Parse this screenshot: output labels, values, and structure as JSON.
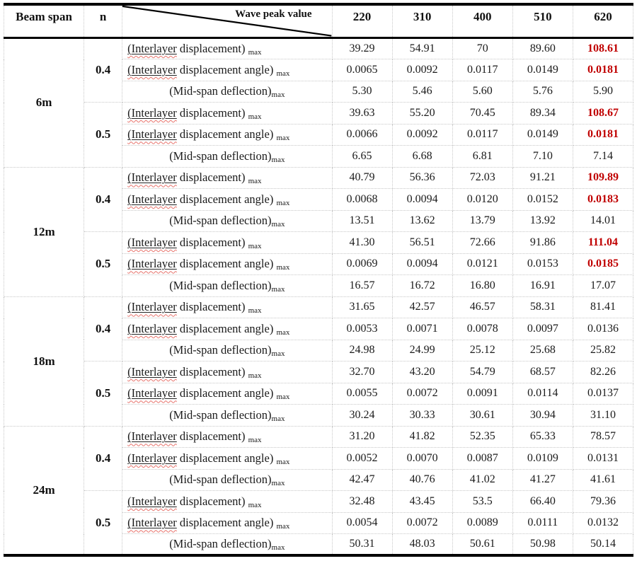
{
  "header": {
    "beam_span": "Beam span",
    "n": "n",
    "diagonal_label": "Wave peak value",
    "wave_columns": [
      "220",
      "310",
      "400",
      "510",
      "620"
    ]
  },
  "labels": {
    "disp": {
      "underlined": "(Interlayer",
      "after": " displacement) ",
      "sub": "max",
      "align": "left"
    },
    "angle": {
      "underlined": "(Interlayer",
      "after": " displacement angle) ",
      "sub": "max",
      "align": "left"
    },
    "mid": {
      "pre": "(Mid-span deflection)",
      "sub": "max",
      "align": "center"
    }
  },
  "colors": {
    "highlight_red": "#c00000",
    "grid_dotted": "#c8c8c8",
    "rule_black": "#000000"
  },
  "groups": [
    {
      "span": "6m",
      "blocks": [
        {
          "n": "0.4",
          "rows": [
            {
              "metric": "disp",
              "values": [
                "39.29",
                "54.91",
                "70",
                "89.60",
                "108.61"
              ],
              "red_last": true
            },
            {
              "metric": "angle",
              "values": [
                "0.0065",
                "0.0092",
                "0.0117",
                "0.0149",
                "0.0181"
              ],
              "red_last": true
            },
            {
              "metric": "mid",
              "values": [
                "5.30",
                "5.46",
                "5.60",
                "5.76",
                "5.90"
              ],
              "red_last": false
            }
          ]
        },
        {
          "n": "0.5",
          "rows": [
            {
              "metric": "disp",
              "values": [
                "39.63",
                "55.20",
                "70.45",
                "89.34",
                "108.67"
              ],
              "red_last": true
            },
            {
              "metric": "angle",
              "values": [
                "0.0066",
                "0.0092",
                "0.0117",
                "0.0149",
                "0.0181"
              ],
              "red_last": true
            },
            {
              "metric": "mid",
              "values": [
                "6.65",
                "6.68",
                "6.81",
                "7.10",
                "7.14"
              ],
              "red_last": false
            }
          ]
        }
      ]
    },
    {
      "span": "12m",
      "blocks": [
        {
          "n": "0.4",
          "rows": [
            {
              "metric": "disp",
              "values": [
                "40.79",
                "56.36",
                "72.03",
                "91.21",
                "109.89"
              ],
              "red_last": true
            },
            {
              "metric": "angle",
              "values": [
                "0.0068",
                "0.0094",
                "0.0120",
                "0.0152",
                "0.0183"
              ],
              "red_last": true
            },
            {
              "metric": "mid",
              "values": [
                "13.51",
                "13.62",
                "13.79",
                "13.92",
                "14.01"
              ],
              "red_last": false
            }
          ]
        },
        {
          "n": "0.5",
          "rows": [
            {
              "metric": "disp",
              "values": [
                "41.30",
                "56.51",
                "72.66",
                "91.86",
                "111.04"
              ],
              "red_last": true
            },
            {
              "metric": "angle",
              "values": [
                "0.0069",
                "0.0094",
                "0.0121",
                "0.0153",
                "0.0185"
              ],
              "red_last": true
            },
            {
              "metric": "mid",
              "values": [
                "16.57",
                "16.72",
                "16.80",
                "16.91",
                "17.07"
              ],
              "red_last": false
            }
          ]
        }
      ]
    },
    {
      "span": "18m",
      "blocks": [
        {
          "n": "0.4",
          "rows": [
            {
              "metric": "disp",
              "values": [
                "31.65",
                "42.57",
                "46.57",
                "58.31",
                "81.41"
              ],
              "red_last": false
            },
            {
              "metric": "angle",
              "values": [
                "0.0053",
                "0.0071",
                "0.0078",
                "0.0097",
                "0.0136"
              ],
              "red_last": false
            },
            {
              "metric": "mid",
              "values": [
                "24.98",
                "24.99",
                "25.12",
                "25.68",
                "25.82"
              ],
              "red_last": false
            }
          ]
        },
        {
          "n": "0.5",
          "rows": [
            {
              "metric": "disp",
              "values": [
                "32.70",
                "43.20",
                "54.79",
                "68.57",
                "82.26"
              ],
              "red_last": false
            },
            {
              "metric": "angle",
              "values": [
                "0.0055",
                "0.0072",
                "0.0091",
                "0.0114",
                "0.0137"
              ],
              "red_last": false
            },
            {
              "metric": "mid",
              "values": [
                "30.24",
                "30.33",
                "30.61",
                "30.94",
                "31.10"
              ],
              "red_last": false
            }
          ]
        }
      ]
    },
    {
      "span": "24m",
      "blocks": [
        {
          "n": "0.4",
          "rows": [
            {
              "metric": "disp",
              "values": [
                "31.20",
                "41.82",
                "52.35",
                "65.33",
                "78.57"
              ],
              "red_last": false
            },
            {
              "metric": "angle",
              "values": [
                "0.0052",
                "0.0070",
                "0.0087",
                "0.0109",
                "0.0131"
              ],
              "red_last": false
            },
            {
              "metric": "mid",
              "values": [
                "42.47",
                "40.76",
                "41.02",
                "41.27",
                "41.61"
              ],
              "red_last": false
            }
          ]
        },
        {
          "n": "0.5",
          "rows": [
            {
              "metric": "disp",
              "values": [
                "32.48",
                "43.45",
                "53.5",
                "66.40",
                "79.36"
              ],
              "red_last": false
            },
            {
              "metric": "angle",
              "values": [
                "0.0054",
                "0.0072",
                "0.0089",
                "0.0111",
                "0.0132"
              ],
              "red_last": false
            },
            {
              "metric": "mid",
              "values": [
                "50.31",
                "48.03",
                "50.61",
                "50.98",
                "50.14"
              ],
              "red_last": false
            }
          ]
        }
      ]
    }
  ]
}
